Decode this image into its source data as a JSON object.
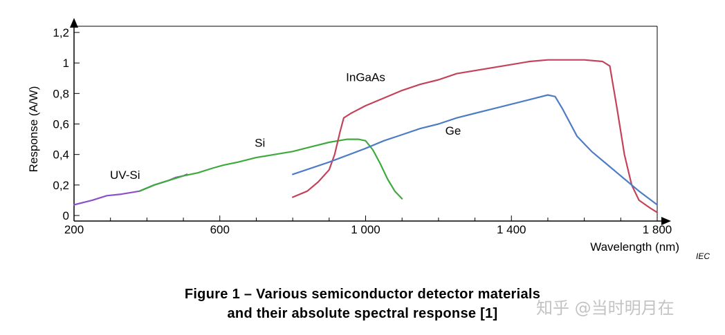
{
  "chart_data": {
    "type": "line",
    "title": "",
    "xlabel": "Wavelength  (nm)",
    "ylabel": "Response  (A/W)",
    "xlim": [
      200,
      1800
    ],
    "ylim": [
      0,
      1.2
    ],
    "x_ticks": [
      "200",
      "600",
      "1 000",
      "1 400",
      "1 800"
    ],
    "y_ticks": [
      "0",
      "0,2",
      "0,4",
      "0,6",
      "0,8",
      "1",
      "1,2"
    ],
    "grid": false,
    "series": [
      {
        "name": "UV-Si",
        "color": "#8B4FC8",
        "x": [
          200,
          250,
          290,
          330,
          380,
          420,
          460,
          480,
          500,
          510
        ],
        "y": [
          0.07,
          0.1,
          0.13,
          0.14,
          0.16,
          0.2,
          0.23,
          0.25,
          0.26,
          0.27
        ]
      },
      {
        "name": "Si",
        "color": "#3DAA3D",
        "x": [
          380,
          420,
          460,
          500,
          540,
          580,
          610,
          650,
          700,
          750,
          800,
          850,
          900,
          950,
          980,
          1000,
          1020,
          1040,
          1060,
          1080,
          1100
        ],
        "y": [
          0.16,
          0.2,
          0.23,
          0.26,
          0.28,
          0.31,
          0.33,
          0.35,
          0.38,
          0.4,
          0.42,
          0.45,
          0.48,
          0.5,
          0.5,
          0.49,
          0.43,
          0.34,
          0.24,
          0.16,
          0.11
        ]
      },
      {
        "name": "InGaAs",
        "color": "#C3425A",
        "x": [
          800,
          840,
          870,
          900,
          915,
          930,
          940,
          960,
          1000,
          1050,
          1100,
          1150,
          1200,
          1250,
          1300,
          1350,
          1400,
          1450,
          1500,
          1550,
          1600,
          1650,
          1670,
          1690,
          1710,
          1730,
          1750,
          1780,
          1800
        ],
        "y": [
          0.12,
          0.16,
          0.22,
          0.3,
          0.4,
          0.55,
          0.64,
          0.67,
          0.72,
          0.77,
          0.82,
          0.86,
          0.89,
          0.93,
          0.95,
          0.97,
          0.99,
          1.01,
          1.02,
          1.02,
          1.02,
          1.01,
          0.98,
          0.7,
          0.4,
          0.2,
          0.1,
          0.05,
          0.02
        ]
      },
      {
        "name": "Ge",
        "color": "#4D7CC4",
        "x": [
          800,
          900,
          1000,
          1050,
          1100,
          1150,
          1200,
          1250,
          1300,
          1350,
          1400,
          1450,
          1500,
          1520,
          1540,
          1580,
          1620,
          1660,
          1700,
          1750,
          1800
        ],
        "y": [
          0.27,
          0.35,
          0.44,
          0.49,
          0.53,
          0.57,
          0.6,
          0.64,
          0.67,
          0.7,
          0.73,
          0.76,
          0.79,
          0.78,
          0.7,
          0.52,
          0.42,
          0.34,
          0.26,
          0.16,
          0.07
        ]
      }
    ],
    "labels": [
      {
        "text": "UV-Si",
        "x": 340,
        "y": 0.24
      },
      {
        "text": "Si",
        "x": 710,
        "y": 0.45
      },
      {
        "text": "InGaAs",
        "x": 1000,
        "y": 0.88
      },
      {
        "text": "Ge",
        "x": 1240,
        "y": 0.53
      }
    ]
  },
  "source_tag": "IEC",
  "caption": {
    "line1": "Figure 1 – Various semiconductor detector materials",
    "line2": "and their absolute spectral response [1]"
  },
  "watermark": "知乎 @当时明月在"
}
